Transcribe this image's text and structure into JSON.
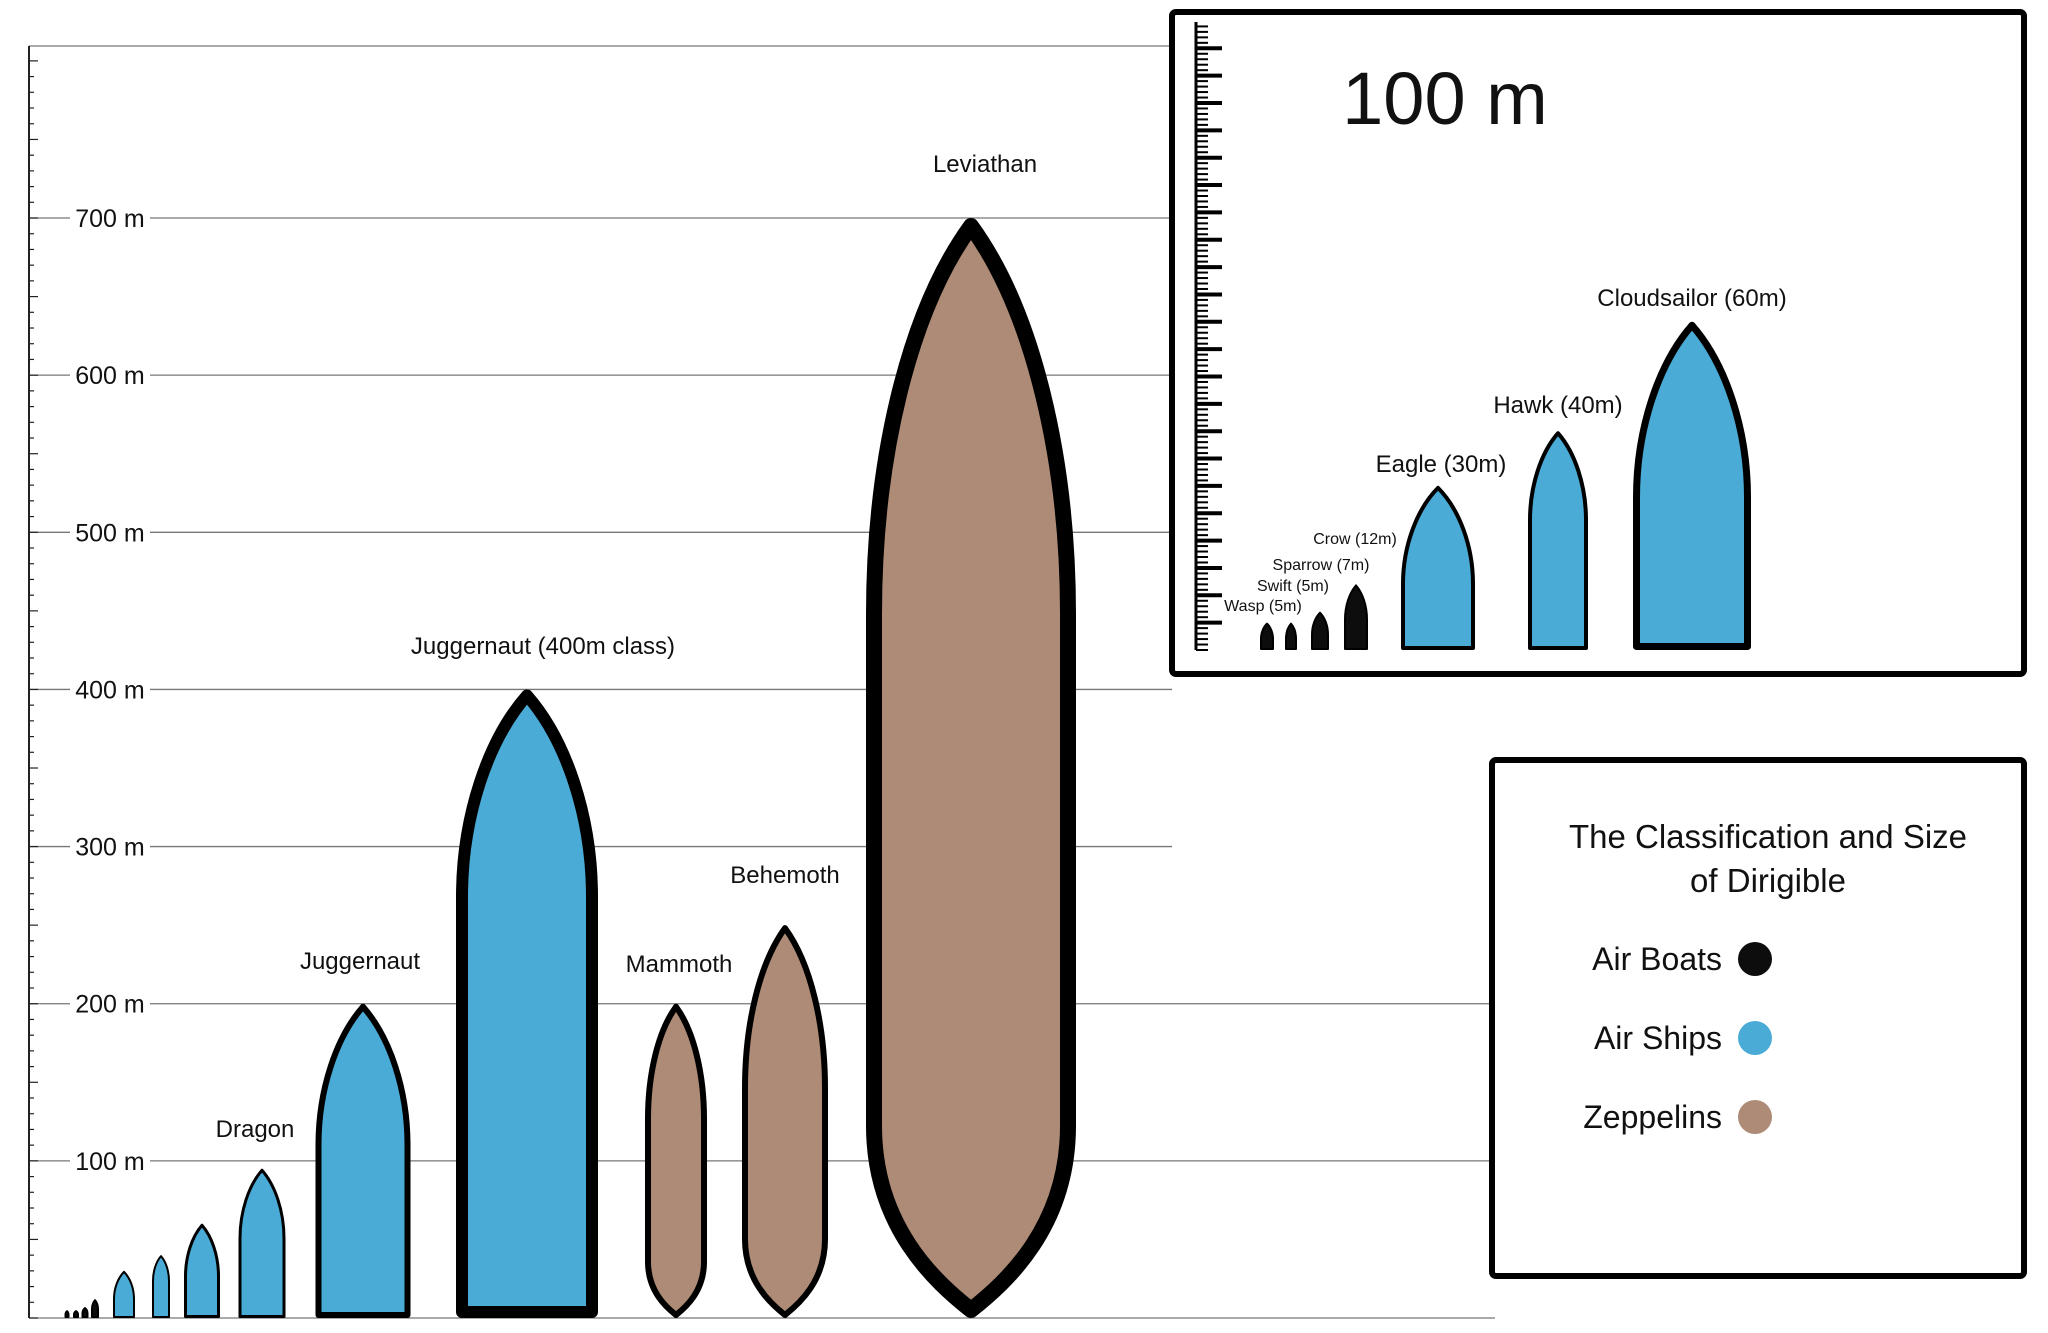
{
  "chart_data": {
    "type": "bar",
    "title": "The Classification and Size of Dirigible",
    "main_scale": {
      "ticks": [
        "100 m",
        "200 m",
        "300 m",
        "400 m",
        "500 m",
        "600 m",
        "700 m"
      ],
      "tick_values": [
        100,
        200,
        300,
        400,
        500,
        600,
        700
      ],
      "ylim": [
        0,
        800
      ]
    },
    "main_ships": [
      {
        "name": "",
        "value": 5,
        "class": "Air Boats"
      },
      {
        "name": "",
        "value": 5,
        "class": "Air Boats"
      },
      {
        "name": "",
        "value": 7,
        "class": "Air Boats"
      },
      {
        "name": "",
        "value": 12,
        "class": "Air Boats"
      },
      {
        "name": "",
        "value": 30,
        "class": "Air Ships"
      },
      {
        "name": "",
        "value": 40,
        "class": "Air Ships"
      },
      {
        "name": "",
        "value": 60,
        "class": "Air Ships"
      },
      {
        "name": "Dragon",
        "value": 95,
        "class": "Air Ships"
      },
      {
        "name": "Juggernaut",
        "value": 200,
        "class": "Air Ships"
      },
      {
        "name": "Juggernaut (400m class)",
        "value": 400,
        "class": "Air Ships"
      },
      {
        "name": "Mammoth",
        "value": 200,
        "class": "Zeppelins"
      },
      {
        "name": "Behemoth",
        "value": 250,
        "class": "Zeppelins"
      },
      {
        "name": "Leviathan",
        "value": 700,
        "class": "Zeppelins"
      }
    ],
    "inset": {
      "title": "100 m",
      "ylim": [
        0,
        100
      ],
      "ships": [
        {
          "name": "Wasp (5m)",
          "value": 5,
          "class": "Air Boats"
        },
        {
          "name": "Swift (5m)",
          "value": 5,
          "class": "Air Boats"
        },
        {
          "name": "Sparrow (7m)",
          "value": 7,
          "class": "Air Boats"
        },
        {
          "name": "Crow (12m)",
          "value": 12,
          "class": "Air Boats"
        },
        {
          "name": "Eagle (30m)",
          "value": 30,
          "class": "Air Ships"
        },
        {
          "name": "Hawk (40m)",
          "value": 40,
          "class": "Air Ships"
        },
        {
          "name": "Cloudsailor (60m)",
          "value": 60,
          "class": "Air Ships"
        }
      ]
    },
    "legend": {
      "placement": "bottom-right",
      "title_line1": "The Classification and Size",
      "title_line2": "of Dirigible",
      "entries": [
        {
          "name": "Air Boats",
          "color": "#0d0d0d"
        },
        {
          "name": "Air Ships",
          "color": "#4aabd6"
        },
        {
          "name": "Zeppelins",
          "color": "#ad8b76"
        }
      ]
    }
  }
}
